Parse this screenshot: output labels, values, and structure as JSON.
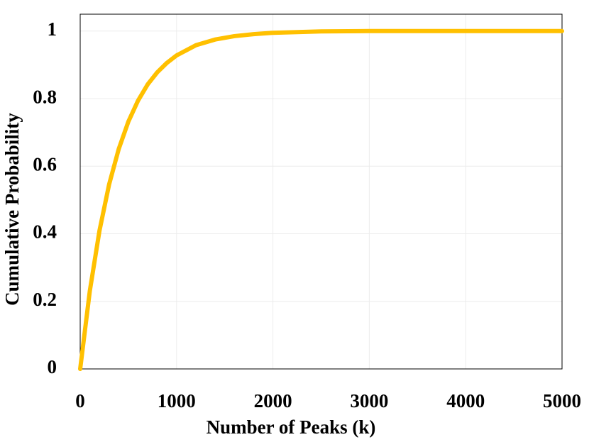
{
  "chart_data": {
    "type": "line",
    "x_label": "Number of Peaks (k)",
    "y_label": "Cumulative Probability",
    "x": [
      0,
      100,
      200,
      300,
      400,
      500,
      600,
      700,
      800,
      900,
      1000,
      1200,
      1400,
      1600,
      1800,
      2000,
      2500,
      3000,
      4000,
      5000
    ],
    "series": [
      {
        "color": "#ffc000",
        "values": [
          0,
          0.231,
          0.409,
          0.546,
          0.651,
          0.732,
          0.794,
          0.842,
          0.878,
          0.906,
          0.928,
          0.958,
          0.975,
          0.985,
          0.991,
          0.995,
          0.999,
          1,
          1,
          1
        ]
      }
    ],
    "xlim": [
      0,
      5000
    ],
    "xticks": [
      0,
      1000,
      2000,
      3000,
      4000,
      5000
    ],
    "ylim": [
      0,
      1.05
    ],
    "yticks": [
      0,
      0.2,
      0.4,
      0.6,
      0.8,
      1
    ],
    "grid": true
  }
}
